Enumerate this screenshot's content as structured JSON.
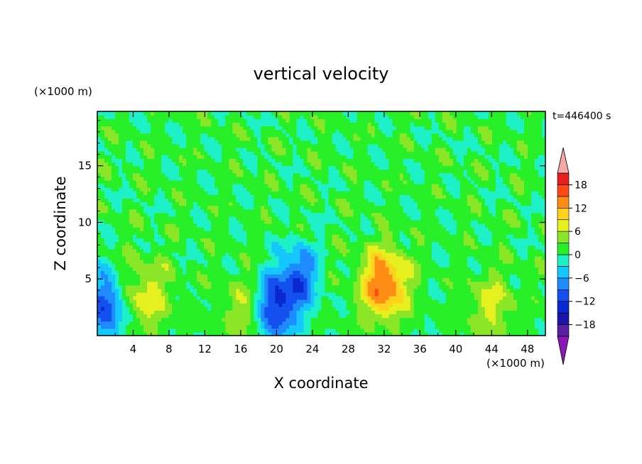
{
  "chart_data": {
    "type": "heatmap",
    "title": "vertical velocity",
    "xlabel": "X coordinate",
    "ylabel": "Z coordinate",
    "x_unit_label": "(×1000 m)",
    "y_unit_label": "(×1000 m)",
    "time_label": "t=446400 s",
    "xlim": [
      0,
      50
    ],
    "ylim": [
      0,
      19.8
    ],
    "x_ticks": [
      4,
      8,
      12,
      16,
      20,
      24,
      28,
      32,
      36,
      40,
      44,
      48
    ],
    "y_ticks": [
      5,
      10,
      15
    ],
    "grid": false,
    "colorbar": {
      "placement": "right",
      "levels": [
        -21,
        -18,
        -15,
        -12,
        -9,
        -6,
        -3,
        0,
        3,
        6,
        9,
        12,
        15,
        18,
        21
      ],
      "tick_labels": [
        -18,
        -12,
        -6,
        0,
        6,
        12,
        18
      ],
      "colors": [
        "#8a18b8",
        "#5a1ea0",
        "#1c14a8",
        "#0a28d2",
        "#1450f0",
        "#1e8cff",
        "#14c8ff",
        "#1ef0c8",
        "#28f028",
        "#8ce628",
        "#e6f01e",
        "#ffd21e",
        "#ff8c14",
        "#ff4a14",
        "#e61e1e",
        "#f4a8a8"
      ]
    },
    "features": [
      {
        "kind": "updraft",
        "x": 32.0,
        "z": 4.5,
        "peak": 15
      },
      {
        "kind": "updraft",
        "x": 5.5,
        "z": 3.5,
        "peak": 7
      },
      {
        "kind": "updraft",
        "x": 44.0,
        "z": 2.5,
        "peak": 6
      },
      {
        "kind": "updraft",
        "x": 16.5,
        "z": 2.0,
        "peak": 5
      },
      {
        "kind": "downdraft",
        "x": 22.5,
        "z": 5.0,
        "peak": -11
      },
      {
        "kind": "downdraft",
        "x": 1.0,
        "z": 2.5,
        "peak": -12
      },
      {
        "kind": "downdraft",
        "x": 19.8,
        "z": 2.5,
        "peak": -14
      }
    ]
  }
}
